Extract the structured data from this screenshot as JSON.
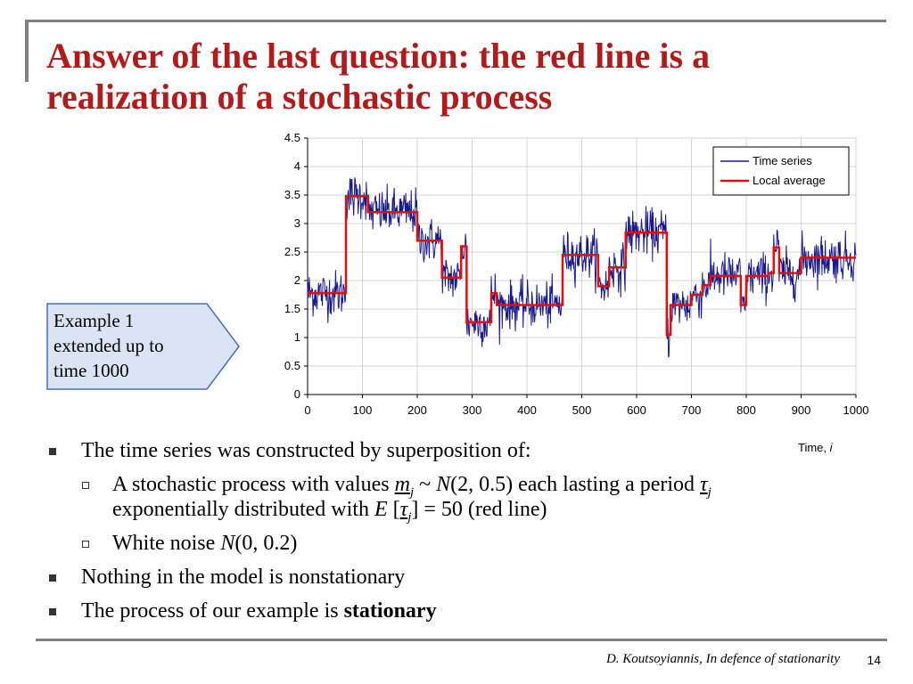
{
  "slide": {
    "title": "Answer of the last question: the red line is a realization of a stochastic process",
    "callout": [
      "Example 1",
      "extended up to",
      "time 1000"
    ],
    "bullets": {
      "b1": "The time series was constructed by superposition of:",
      "sub1": {
        "t1": "A stochastic process with values ",
        "m": "m",
        "j": "j",
        "t2": " ~ ",
        "N": "N",
        "t3": "(2, 0.5) each lasting a period ",
        "tau": "τ",
        "j2": "j",
        "t4": "exponentially distributed with ",
        "E": "E",
        "t5": " [",
        "tau2": "τ",
        "j3": "j",
        "t6": "] = 50 (red line)"
      },
      "sub2": {
        "t1": "White noise ",
        "N": "N",
        "t2": "(0, 0.2)"
      },
      "b2": "Nothing in the model is nonstationary",
      "b3_pre": "The process of our example is ",
      "b3_bold": "stationary"
    },
    "footer": "D. Koutsoyiannis, In defence of stationarity",
    "page_number": "14"
  },
  "colors": {
    "title": "#b01c1c",
    "series": "#1a1a8c",
    "local_average": "#e01010"
  },
  "chart_data": {
    "type": "line",
    "xlabel": "Time, ",
    "xlabel_italic": "i",
    "xlim": [
      0,
      1000
    ],
    "ylim": [
      0,
      4.5
    ],
    "x_ticks": [
      "0",
      "100",
      "200",
      "300",
      "400",
      "500",
      "600",
      "700",
      "800",
      "900",
      "1000"
    ],
    "y_ticks": [
      "0",
      "0.5",
      "1",
      "1.5",
      "2",
      "2.5",
      "3",
      "3.5",
      "4",
      "4.5"
    ],
    "grid": true,
    "legend_position": "top-right",
    "series": [
      {
        "name": "Time series",
        "color": "#1a1a8c",
        "noise_sd": 0.2
      },
      {
        "name": "Local average",
        "color": "#e01010",
        "segments": [
          [
            0,
            70,
            1.78
          ],
          [
            70,
            110,
            3.48
          ],
          [
            110,
            200,
            3.2
          ],
          [
            200,
            245,
            2.7
          ],
          [
            245,
            280,
            2.05
          ],
          [
            280,
            290,
            2.6
          ],
          [
            290,
            335,
            1.27
          ],
          [
            335,
            345,
            1.78
          ],
          [
            345,
            465,
            1.57
          ],
          [
            465,
            530,
            2.45
          ],
          [
            530,
            550,
            1.9
          ],
          [
            550,
            580,
            2.23
          ],
          [
            580,
            655,
            2.84
          ],
          [
            655,
            662,
            1.05
          ],
          [
            662,
            700,
            1.57
          ],
          [
            700,
            720,
            1.75
          ],
          [
            720,
            735,
            1.92
          ],
          [
            735,
            790,
            2.08
          ],
          [
            790,
            800,
            1.57
          ],
          [
            800,
            840,
            2.08
          ],
          [
            840,
            850,
            2.13
          ],
          [
            850,
            860,
            2.58
          ],
          [
            860,
            900,
            2.13
          ],
          [
            900,
            1000,
            2.4
          ]
        ]
      }
    ]
  }
}
